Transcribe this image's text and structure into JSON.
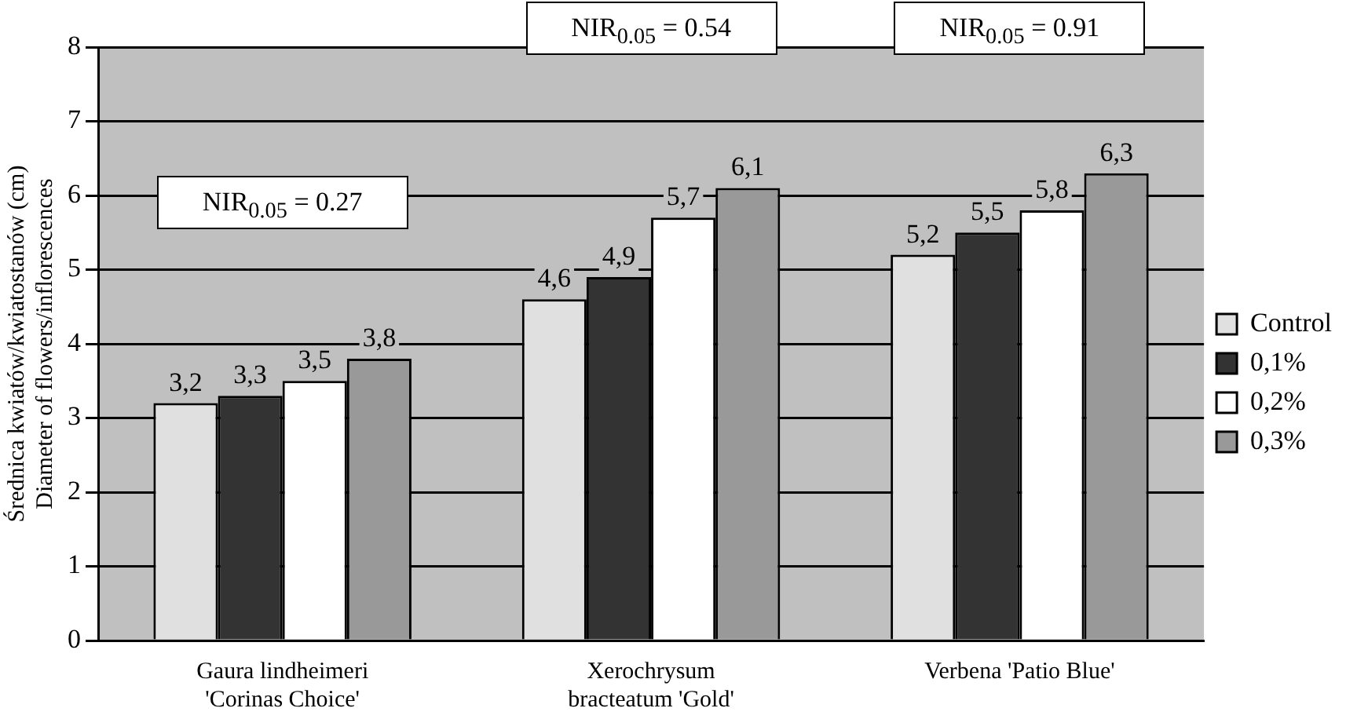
{
  "chart_data": {
    "type": "bar",
    "ylabel": "Średnica kwiatów/kwiatostanów (cm)\nDiameter of flowers/inflorescences",
    "categories": [
      "Gaura lindheimeri\n'Corinas Choice'",
      "Xerochrysum\nbracteatum 'Gold'",
      "Verbena 'Patio Blue'"
    ],
    "series": [
      {
        "name": "Control",
        "color": "#e0e0e0",
        "values": [
          3.2,
          4.6,
          5.2
        ],
        "value_labels": [
          "3,2",
          "4,6",
          "5,2"
        ]
      },
      {
        "name": "0,1%",
        "color": "#333333",
        "values": [
          3.3,
          4.9,
          5.5
        ],
        "value_labels": [
          "3,3",
          "4,9",
          "5,5"
        ]
      },
      {
        "name": "0,2%",
        "color": "#ffffff",
        "values": [
          3.5,
          5.7,
          5.8
        ],
        "value_labels": [
          "3,5",
          "5,7",
          "5,8"
        ]
      },
      {
        "name": "0,3%",
        "color": "#999999",
        "values": [
          3.8,
          6.1,
          6.3
        ],
        "value_labels": [
          "3,8",
          "6,1",
          "6,3"
        ]
      }
    ],
    "ylim": [
      0,
      8
    ],
    "yticks": [
      0,
      1,
      2,
      3,
      4,
      5,
      6,
      7,
      8
    ],
    "grid": "y",
    "legend": "right",
    "annotations": [
      "NIR$_{0.05}$ = 0.27",
      "NIR$_{0.05}$ = 0.54",
      "NIR$_{0.05}$ = 0.91"
    ]
  }
}
